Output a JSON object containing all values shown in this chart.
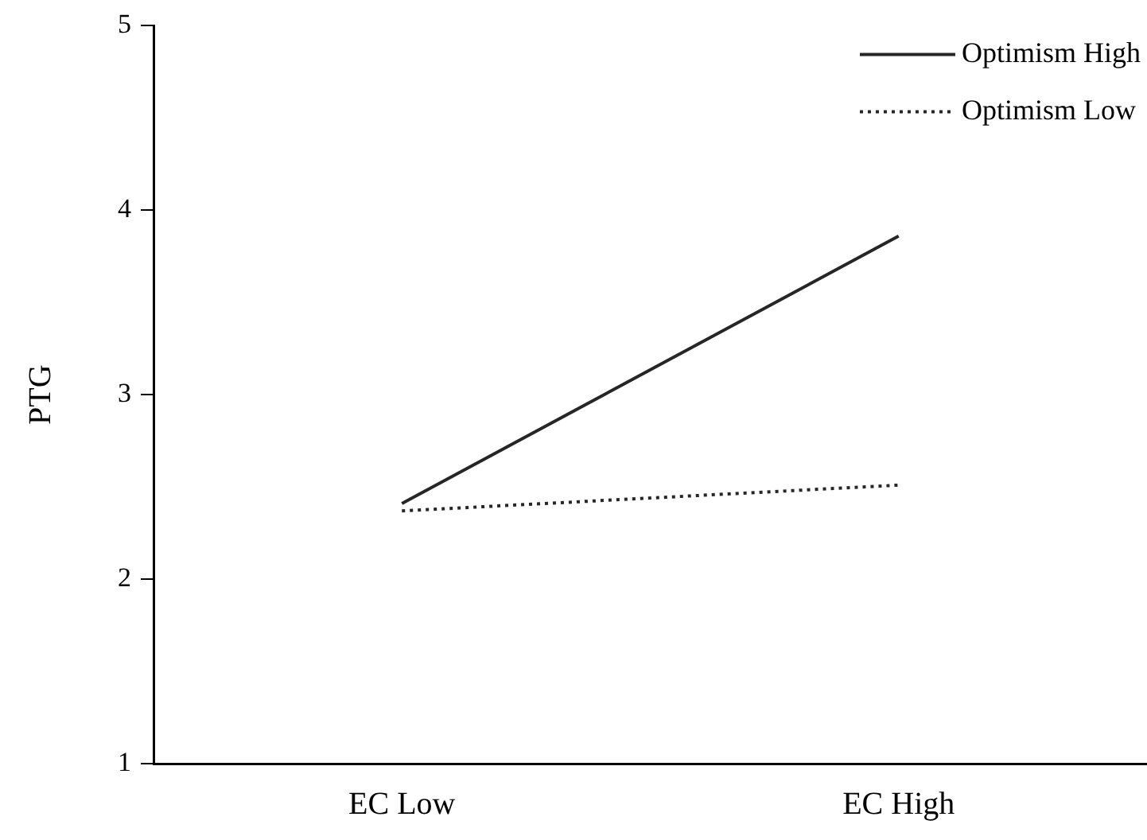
{
  "chart_data": {
    "type": "line",
    "ylabel": "PTG",
    "categories": [
      "EC Low",
      "EC High"
    ],
    "series": [
      {
        "name": "Optimism High",
        "color": "#262626",
        "line_style": "solid",
        "values": [
          2.41,
          3.86
        ]
      },
      {
        "name": "Optimism Low",
        "color": "#262626",
        "line_style": "dotted",
        "values": [
          2.37,
          2.51
        ]
      }
    ],
    "ylim": [
      1,
      5
    ],
    "yticks": [
      1,
      2,
      3,
      4,
      5
    ],
    "grid": false,
    "legend": "top right",
    "marker": "none"
  }
}
